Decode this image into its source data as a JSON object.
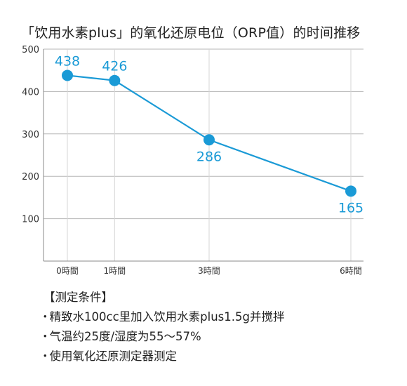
{
  "chart_data": {
    "type": "line",
    "title": "「饮用水素plus」的氧化还原电位（ORP值）的时间推移",
    "x": [
      0,
      1,
      3,
      6
    ],
    "categories": [
      "0時間",
      "1時間",
      "3時間",
      "6時間"
    ],
    "values": [
      438,
      426,
      286,
      165
    ],
    "data_labels": [
      "438",
      "426",
      "286",
      "165"
    ],
    "yticks": [
      "100",
      "200",
      "300",
      "400",
      "500"
    ],
    "ylim": [
      0,
      500
    ],
    "xlim": [
      0,
      6
    ],
    "grid": true,
    "line_color": "#1a9ad6",
    "label_color": "#1a9ad6",
    "grid_color": "#b5b5b5"
  },
  "conditions": {
    "heading": "【测定条件】",
    "items": [
      "精致水100cc里加入饮用水素plus1.5g并搅拌",
      "气温约25度/湿度为55～57%",
      "使用氧化还原测定器测定"
    ]
  }
}
